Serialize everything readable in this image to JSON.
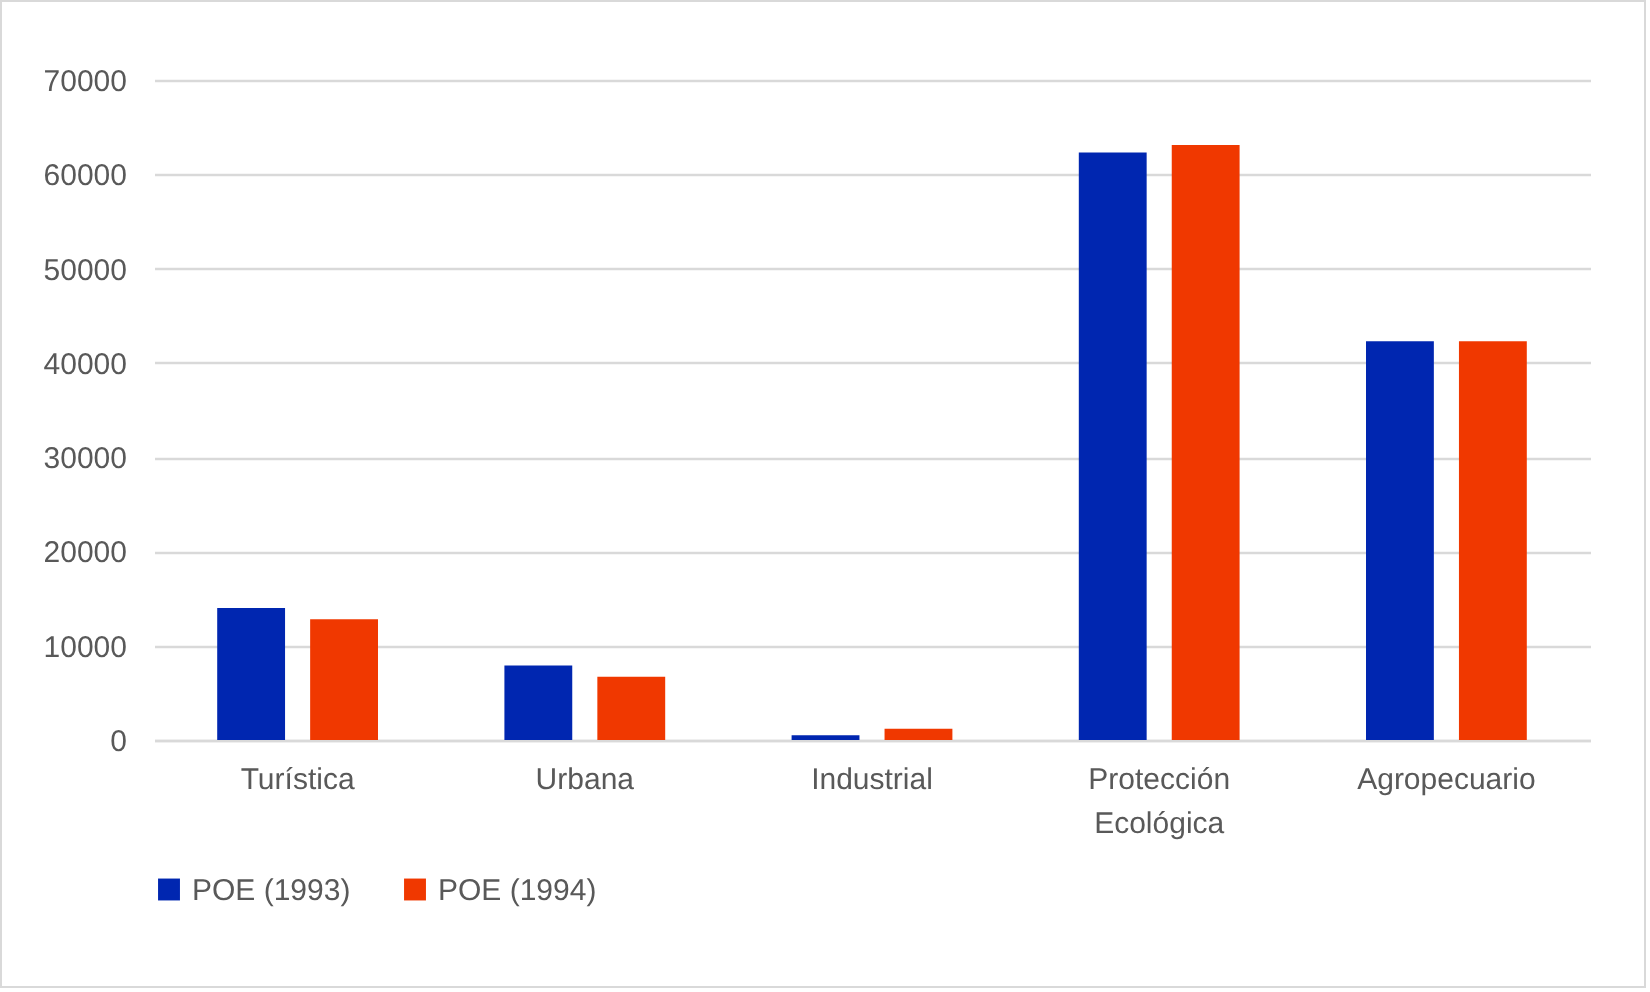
{
  "chart_data": {
    "type": "bar",
    "categories": [
      "Turística",
      "Urbana",
      "Industrial",
      "Protección Ecológica",
      "Agropecuario"
    ],
    "series": [
      {
        "name": "POE (1993)",
        "color": "#0026b0",
        "values": [
          14000,
          7900,
          500,
          62300,
          42300
        ]
      },
      {
        "name": "POE (1994)",
        "color": "#f03800",
        "values": [
          12800,
          6700,
          1200,
          63100,
          42300
        ]
      }
    ],
    "ylim": [
      0,
      70000
    ],
    "yticks": [
      0,
      10000,
      20000,
      30000,
      40000,
      50000,
      60000,
      70000
    ],
    "grid": "y",
    "legend": "bottom"
  }
}
